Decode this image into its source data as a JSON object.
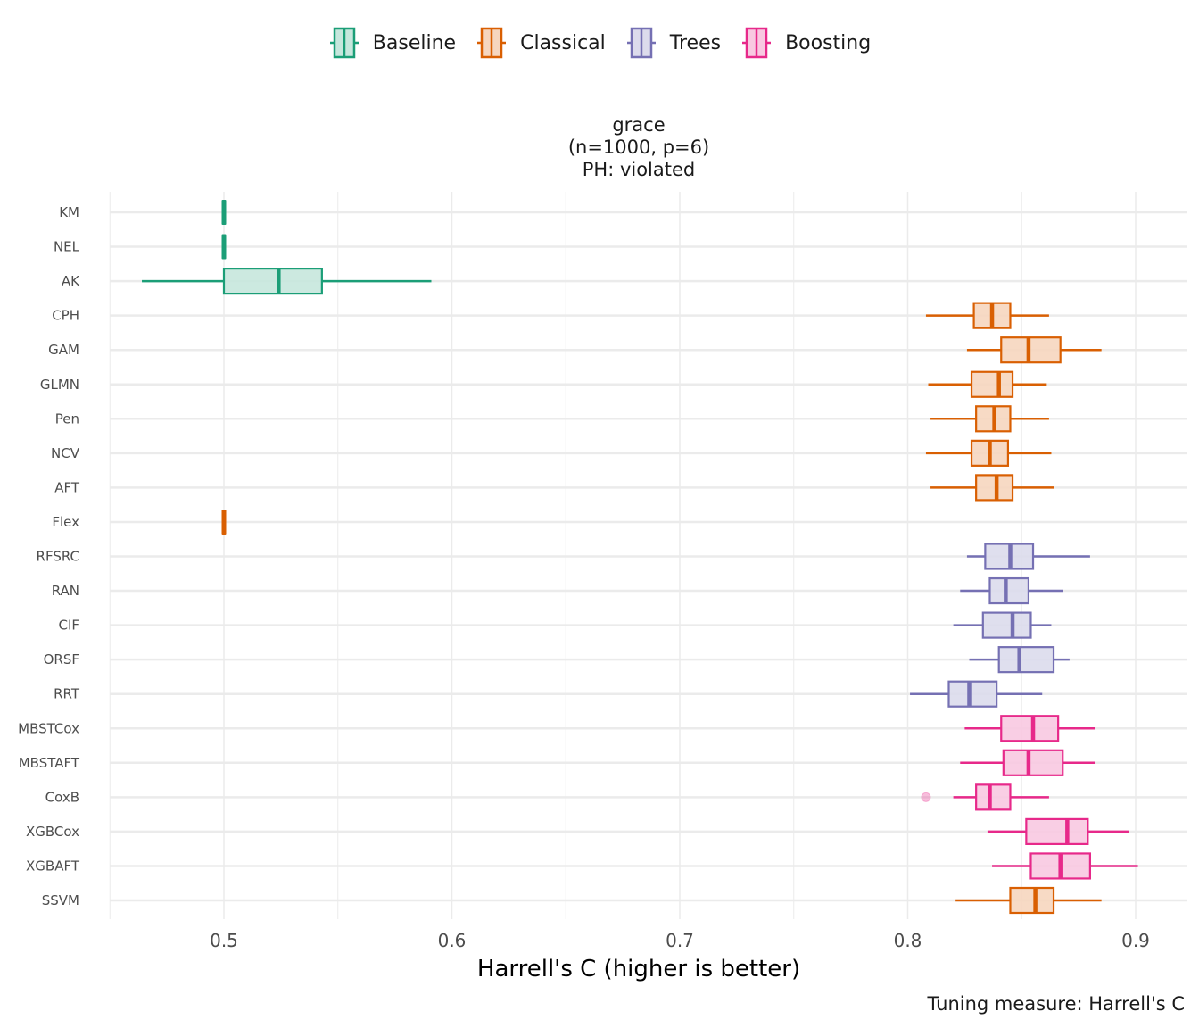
{
  "chart_data": {
    "type": "boxplot",
    "orientation": "horizontal",
    "strip_title": [
      "grace",
      "(n=1000, p=6)",
      "PH: violated"
    ],
    "xlabel": "Harrell's C (higher is better)",
    "caption": "Tuning measure: Harrell's C",
    "xlim": [
      0.45,
      0.92
    ],
    "x_ticks": [
      0.5,
      0.6,
      0.7,
      0.8,
      0.9
    ],
    "x_tick_labels": [
      "0.5",
      "0.6",
      "0.7",
      "0.8",
      "0.9"
    ],
    "x_minor_gridlines": [
      0.45,
      0.55,
      0.65,
      0.75,
      0.85
    ],
    "grid": true,
    "legend": {
      "position": "top",
      "entries": [
        {
          "name": "Baseline",
          "color": "#1b9e77",
          "fill": "#c6e7dd"
        },
        {
          "name": "Classical",
          "color": "#d95f02",
          "fill": "#f6d6bf"
        },
        {
          "name": "Trees",
          "color": "#7570b3",
          "fill": "#dcdbec"
        },
        {
          "name": "Boosting",
          "color": "#e7298a",
          "fill": "#f8c9e1"
        }
      ]
    },
    "series": [
      {
        "name": "KM",
        "group": "Baseline",
        "min": 0.5,
        "q1": 0.5,
        "median": 0.5,
        "q3": 0.5,
        "max": 0.5,
        "outliers": []
      },
      {
        "name": "NEL",
        "group": "Baseline",
        "min": 0.5,
        "q1": 0.5,
        "median": 0.5,
        "q3": 0.5,
        "max": 0.5,
        "outliers": []
      },
      {
        "name": "AK",
        "group": "Baseline",
        "min": 0.464,
        "q1": 0.5,
        "median": 0.524,
        "q3": 0.543,
        "max": 0.591,
        "outliers": []
      },
      {
        "name": "CPH",
        "group": "Classical",
        "min": 0.808,
        "q1": 0.829,
        "median": 0.837,
        "q3": 0.845,
        "max": 0.862,
        "outliers": []
      },
      {
        "name": "GAM",
        "group": "Classical",
        "min": 0.826,
        "q1": 0.841,
        "median": 0.853,
        "q3": 0.867,
        "max": 0.885,
        "outliers": []
      },
      {
        "name": "GLMN",
        "group": "Classical",
        "min": 0.809,
        "q1": 0.828,
        "median": 0.84,
        "q3": 0.846,
        "max": 0.861,
        "outliers": []
      },
      {
        "name": "Pen",
        "group": "Classical",
        "min": 0.81,
        "q1": 0.83,
        "median": 0.838,
        "q3": 0.845,
        "max": 0.862,
        "outliers": []
      },
      {
        "name": "NCV",
        "group": "Classical",
        "min": 0.808,
        "q1": 0.828,
        "median": 0.836,
        "q3": 0.844,
        "max": 0.863,
        "outliers": []
      },
      {
        "name": "AFT",
        "group": "Classical",
        "min": 0.81,
        "q1": 0.83,
        "median": 0.839,
        "q3": 0.846,
        "max": 0.864,
        "outliers": []
      },
      {
        "name": "Flex",
        "group": "Classical",
        "min": 0.5,
        "q1": 0.5,
        "median": 0.5,
        "q3": 0.5,
        "max": 0.5,
        "outliers": []
      },
      {
        "name": "RFSRC",
        "group": "Trees",
        "min": 0.826,
        "q1": 0.834,
        "median": 0.845,
        "q3": 0.855,
        "max": 0.88,
        "outliers": []
      },
      {
        "name": "RAN",
        "group": "Trees",
        "min": 0.823,
        "q1": 0.836,
        "median": 0.843,
        "q3": 0.853,
        "max": 0.868,
        "outliers": []
      },
      {
        "name": "CIF",
        "group": "Trees",
        "min": 0.82,
        "q1": 0.833,
        "median": 0.846,
        "q3": 0.854,
        "max": 0.863,
        "outliers": []
      },
      {
        "name": "ORSF",
        "group": "Trees",
        "min": 0.827,
        "q1": 0.84,
        "median": 0.849,
        "q3": 0.864,
        "max": 0.871,
        "outliers": []
      },
      {
        "name": "RRT",
        "group": "Trees",
        "min": 0.801,
        "q1": 0.818,
        "median": 0.827,
        "q3": 0.839,
        "max": 0.859,
        "outliers": []
      },
      {
        "name": "MBSTCox",
        "group": "Boosting",
        "min": 0.825,
        "q1": 0.841,
        "median": 0.855,
        "q3": 0.866,
        "max": 0.882,
        "outliers": []
      },
      {
        "name": "MBSTAFT",
        "group": "Boosting",
        "min": 0.823,
        "q1": 0.842,
        "median": 0.853,
        "q3": 0.868,
        "max": 0.882,
        "outliers": []
      },
      {
        "name": "CoxB",
        "group": "Boosting",
        "min": 0.82,
        "q1": 0.83,
        "median": 0.836,
        "q3": 0.845,
        "max": 0.862,
        "outliers": [
          0.808
        ]
      },
      {
        "name": "XGBCox",
        "group": "Boosting",
        "min": 0.835,
        "q1": 0.852,
        "median": 0.87,
        "q3": 0.879,
        "max": 0.897,
        "outliers": []
      },
      {
        "name": "XGBAFT",
        "group": "Boosting",
        "min": 0.837,
        "q1": 0.854,
        "median": 0.867,
        "q3": 0.88,
        "max": 0.901,
        "outliers": []
      },
      {
        "name": "SSVM",
        "group": "Classical",
        "min": 0.821,
        "q1": 0.845,
        "median": 0.856,
        "q3": 0.864,
        "max": 0.885,
        "outliers": []
      }
    ]
  }
}
